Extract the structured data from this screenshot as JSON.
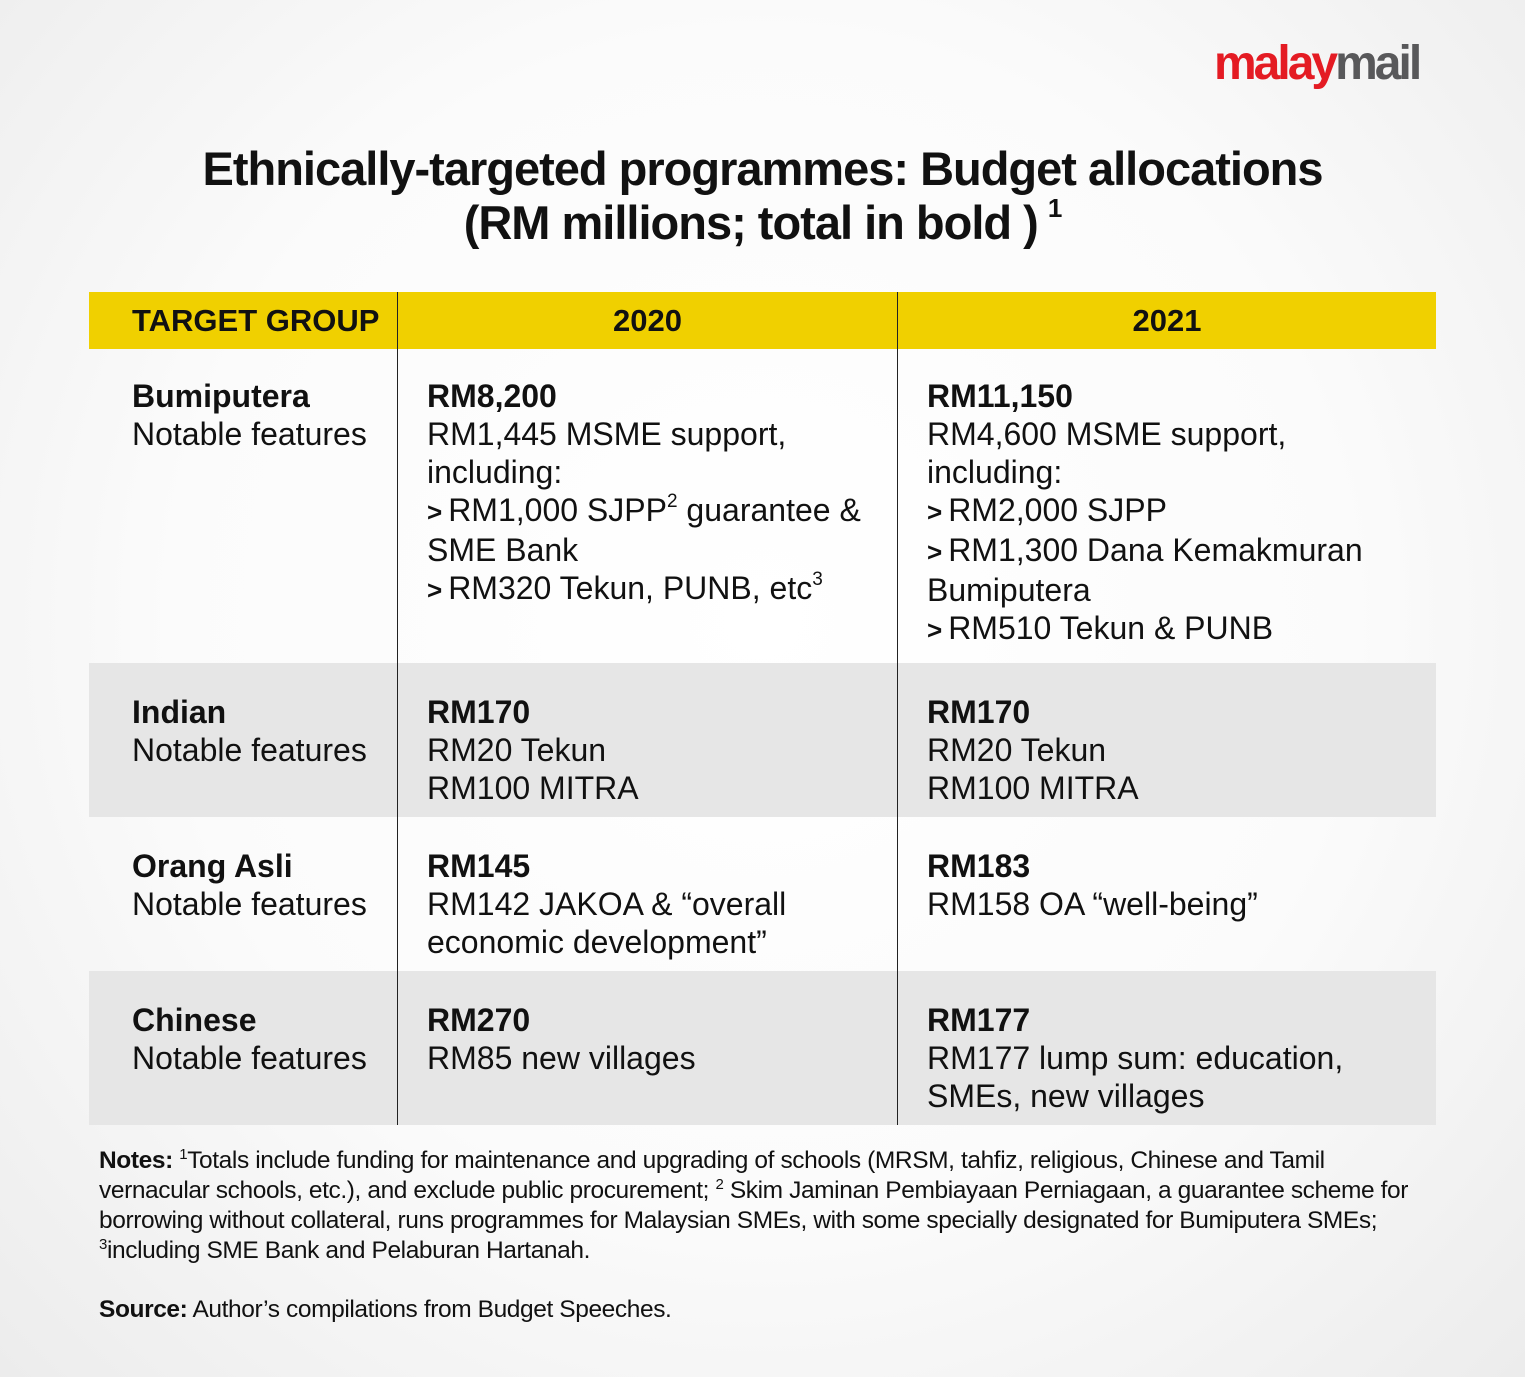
{
  "logo": {
    "part1": "malay",
    "part2": "mail",
    "colors": {
      "malay": "#e41b23",
      "mail": "#58585a"
    }
  },
  "title": {
    "line1": "Ethnically-targeted programmes: Budget allocations",
    "line2": "(RM millions; total in bold )",
    "footnote": "1"
  },
  "table": {
    "headers": [
      "TARGET GROUP",
      "2020",
      "2021"
    ],
    "header_color": "#f0d000",
    "rows": [
      {
        "group": "Bumiputera",
        "sub": "Notable features",
        "y2020": [
          {
            "kind": "total",
            "text": "RM8,200"
          },
          {
            "kind": "text",
            "text": "RM1,445 MSME support,"
          },
          {
            "kind": "text",
            "text": "including:"
          },
          {
            "kind": "bullet",
            "text": "RM1,000 SJPP",
            "sup": "2",
            "after": " guarantee &"
          },
          {
            "kind": "text",
            "text": "SME Bank"
          },
          {
            "kind": "bullet",
            "text": "RM320 Tekun, PUNB, etc",
            "sup": "3"
          }
        ],
        "y2021": [
          {
            "kind": "total",
            "text": "RM11,150"
          },
          {
            "kind": "text",
            "text": "RM4,600 MSME support,"
          },
          {
            "kind": "text",
            "text": "including:"
          },
          {
            "kind": "bullet",
            "text": "RM2,000 SJPP"
          },
          {
            "kind": "bullet",
            "text": "RM1,300 Dana Kemakmuran"
          },
          {
            "kind": "text",
            "text": "Bumiputera"
          },
          {
            "kind": "bullet",
            "text": "RM510 Tekun & PUNB"
          }
        ]
      },
      {
        "group": "Indian",
        "sub": "Notable features",
        "y2020": [
          {
            "kind": "total",
            "text": "RM170"
          },
          {
            "kind": "text",
            "text": "RM20 Tekun"
          },
          {
            "kind": "text",
            "text": "RM100 MITRA"
          }
        ],
        "y2021": [
          {
            "kind": "total",
            "text": "RM170"
          },
          {
            "kind": "text",
            "text": "RM20 Tekun"
          },
          {
            "kind": "text",
            "text": "RM100 MITRA"
          }
        ]
      },
      {
        "group": "Orang Asli",
        "sub": "Notable features",
        "y2020": [
          {
            "kind": "total",
            "text": "RM145"
          },
          {
            "kind": "text",
            "text": "RM142 JAKOA & “overall"
          },
          {
            "kind": "text",
            "text": "economic development”"
          }
        ],
        "y2021": [
          {
            "kind": "total",
            "text": "RM183"
          },
          {
            "kind": "text",
            "text": "RM158 OA “well-being”"
          }
        ]
      },
      {
        "group": "Chinese",
        "sub": "Notable features",
        "y2020": [
          {
            "kind": "total",
            "text": "RM270"
          },
          {
            "kind": "text",
            "text": "RM85 new villages"
          }
        ],
        "y2021": [
          {
            "kind": "total",
            "text": "RM177"
          },
          {
            "kind": "text",
            "text": "RM177 lump sum: education,"
          },
          {
            "kind": "text",
            "text": "SMEs, new villages"
          }
        ]
      }
    ]
  },
  "notes": {
    "label": "Notes:",
    "n1": "1",
    "t1": "Totals include funding for maintenance and upgrading of schools (MRSM, tahfiz, religious, Chinese and Tamil vernacular schools, etc.), and exclude public procurement;",
    "n2": "2",
    "t2": "Skim Jaminan Pembiayaan Perniagaan, a guarantee scheme for borrowing without collateral, runs programmes for Malaysian SMEs, with some specially designated for Bumiputera SMEs;",
    "n3": "3",
    "t3": "including SME Bank and Pelaburan Hartanah."
  },
  "source": {
    "label": "Source:",
    "text": "Author’s compilations from Budget Speeches."
  },
  "bullet_glyph": ">"
}
